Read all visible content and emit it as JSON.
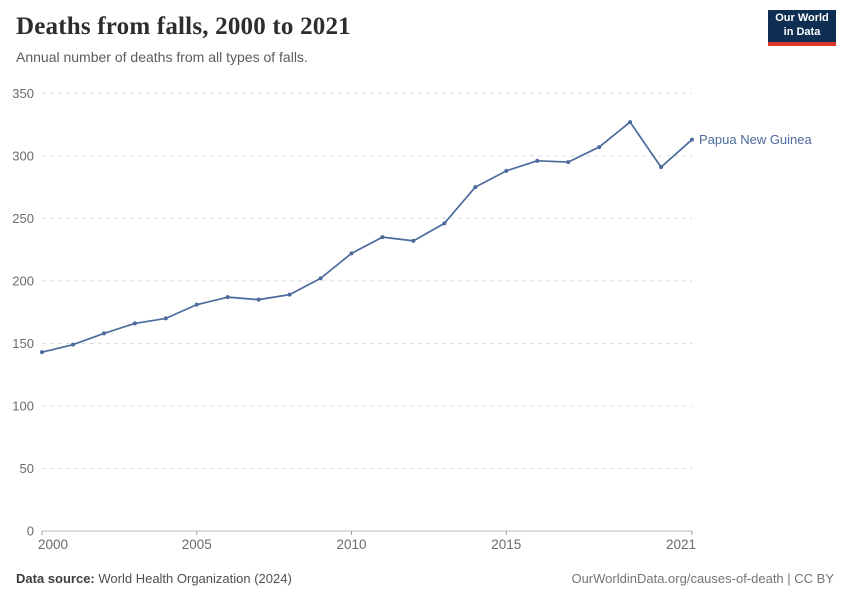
{
  "header": {
    "title": "Deaths from falls, 2000 to 2021",
    "subtitle": "Annual number of deaths from all types of falls.",
    "logo": {
      "line1": "Our World",
      "line2": "in Data",
      "bg_color": "#0e2f52",
      "accent_color": "#dc352c",
      "text_color": "#ffffff"
    }
  },
  "chart_data": {
    "type": "line",
    "title": "Deaths from falls, 2000 to 2021",
    "xlabel": "",
    "ylabel": "",
    "x": [
      2000,
      2001,
      2002,
      2003,
      2004,
      2005,
      2006,
      2007,
      2008,
      2009,
      2010,
      2011,
      2012,
      2013,
      2014,
      2015,
      2016,
      2017,
      2018,
      2019,
      2020,
      2021
    ],
    "series": [
      {
        "name": "Papua New Guinea",
        "color": "#4C6A9C",
        "values": [
          143,
          149,
          158,
          166,
          170,
          181,
          187,
          185,
          189,
          202,
          222,
          235,
          232,
          246,
          275,
          288,
          296,
          295,
          307,
          327,
          291,
          313
        ]
      }
    ],
    "xticks": [
      2000,
      2005,
      2010,
      2015,
      2021
    ],
    "yticks": [
      0,
      50,
      100,
      150,
      200,
      250,
      300,
      350
    ],
    "xlim": [
      2000,
      2021
    ],
    "ylim": [
      0,
      350
    ],
    "grid": "horizontal-dashed",
    "grid_color": "#dcdcdc",
    "axis_color": "#b8b8b8",
    "tick_color": "#a0a0a0",
    "tick_label_color": "#6b6b6b",
    "legend_position": "end-of-line",
    "end_label": "Papua New Guinea"
  },
  "footer": {
    "source_label": "Data source:",
    "source_value": "World Health Organization (2024)",
    "credit": "OurWorldinData.org/causes-of-death | CC BY"
  }
}
